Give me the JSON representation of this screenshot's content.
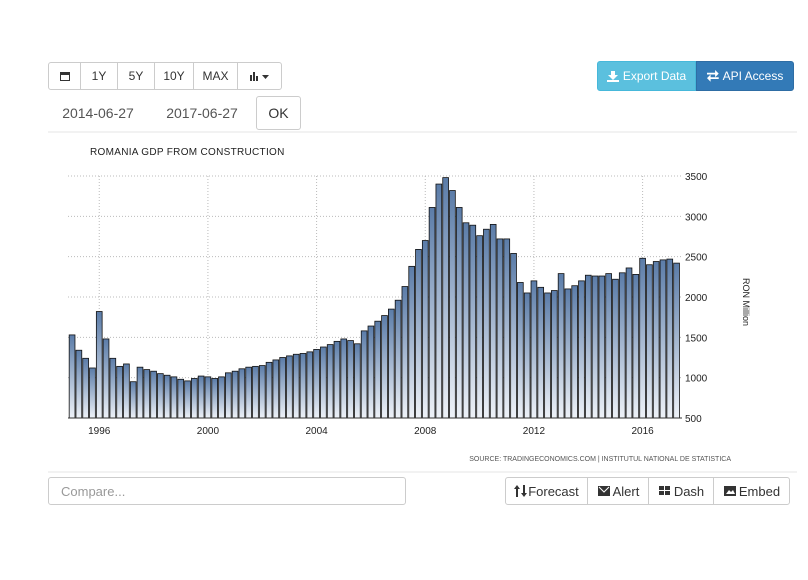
{
  "toolbar": {
    "ranges": [
      "1Y",
      "5Y",
      "10Y",
      "MAX"
    ],
    "export": "Export Data",
    "api": "API Access",
    "start_date": "2014-06-27",
    "end_date": "2017-06-27",
    "ok": "OK"
  },
  "chart_data": {
    "type": "bar",
    "title": "ROMANIA GDP FROM CONSTRUCTION",
    "y_label": "RON Million",
    "source": "SOURCE: TRADINGECONOMICS.COM | INSTITUTUL NATIONAL DE STATISTICA",
    "color": "#5b7ca8",
    "grid": true,
    "x": [
      1995,
      1995.25,
      1995.5,
      1995.75,
      1996,
      1996.25,
      1996.5,
      1996.75,
      1997,
      1997.25,
      1997.5,
      1997.75,
      1998,
      1998.25,
      1998.5,
      1998.75,
      1999,
      1999.25,
      1999.5,
      1999.75,
      2000,
      2000.25,
      2000.5,
      2000.75,
      2001,
      2001.25,
      2001.5,
      2001.75,
      2002,
      2002.25,
      2002.5,
      2002.75,
      2003,
      2003.25,
      2003.5,
      2003.75,
      2004,
      2004.25,
      2004.5,
      2004.75,
      2005,
      2005.25,
      2005.5,
      2005.75,
      2006,
      2006.25,
      2006.5,
      2006.75,
      2007,
      2007.25,
      2007.5,
      2007.75,
      2008,
      2008.25,
      2008.5,
      2008.75,
      2009,
      2009.25,
      2009.5,
      2009.75,
      2010,
      2010.25,
      2010.5,
      2010.75,
      2011,
      2011.25,
      2011.5,
      2011.75,
      2012,
      2012.25,
      2012.5,
      2012.75,
      2013,
      2013.25,
      2013.5,
      2013.75,
      2014,
      2014.25,
      2014.5,
      2014.75,
      2015,
      2015.25,
      2015.5,
      2015.75,
      2016,
      2016.25,
      2016.5,
      2016.75,
      2017,
      2017.25
    ],
    "values": [
      1530,
      1340,
      1240,
      1120,
      1820,
      1480,
      1240,
      1140,
      1170,
      950,
      1130,
      1100,
      1080,
      1050,
      1030,
      1010,
      980,
      960,
      990,
      1020,
      1010,
      990,
      1010,
      1060,
      1080,
      1110,
      1130,
      1140,
      1150,
      1190,
      1220,
      1250,
      1270,
      1290,
      1300,
      1320,
      1350,
      1380,
      1410,
      1450,
      1480,
      1460,
      1420,
      1580,
      1640,
      1700,
      1770,
      1850,
      1960,
      2130,
      2380,
      2590,
      2700,
      3110,
      3400,
      3480,
      3320,
      3110,
      2920,
      2890,
      2760,
      2840,
      2900,
      2720,
      2720,
      2540,
      2180,
      2050,
      2200,
      2120,
      2050,
      2080,
      2290,
      2100,
      2140,
      2200,
      2270,
      2260,
      2260,
      2290,
      2220,
      2300,
      2360,
      2280,
      2480,
      2400,
      2440,
      2460,
      2470,
      2420
    ],
    "xlim": [
      1994.85,
      2017.45
    ],
    "xticks": [
      1996,
      2000,
      2004,
      2008,
      2012,
      2016
    ],
    "ylim": [
      500,
      3500
    ],
    "yticks": [
      500,
      1000,
      1500,
      2000,
      2500,
      3000,
      3500
    ]
  },
  "footer": {
    "compare": "Compare...",
    "buttons": [
      "Forecast",
      "Alert",
      "Dash",
      "Embed"
    ]
  }
}
